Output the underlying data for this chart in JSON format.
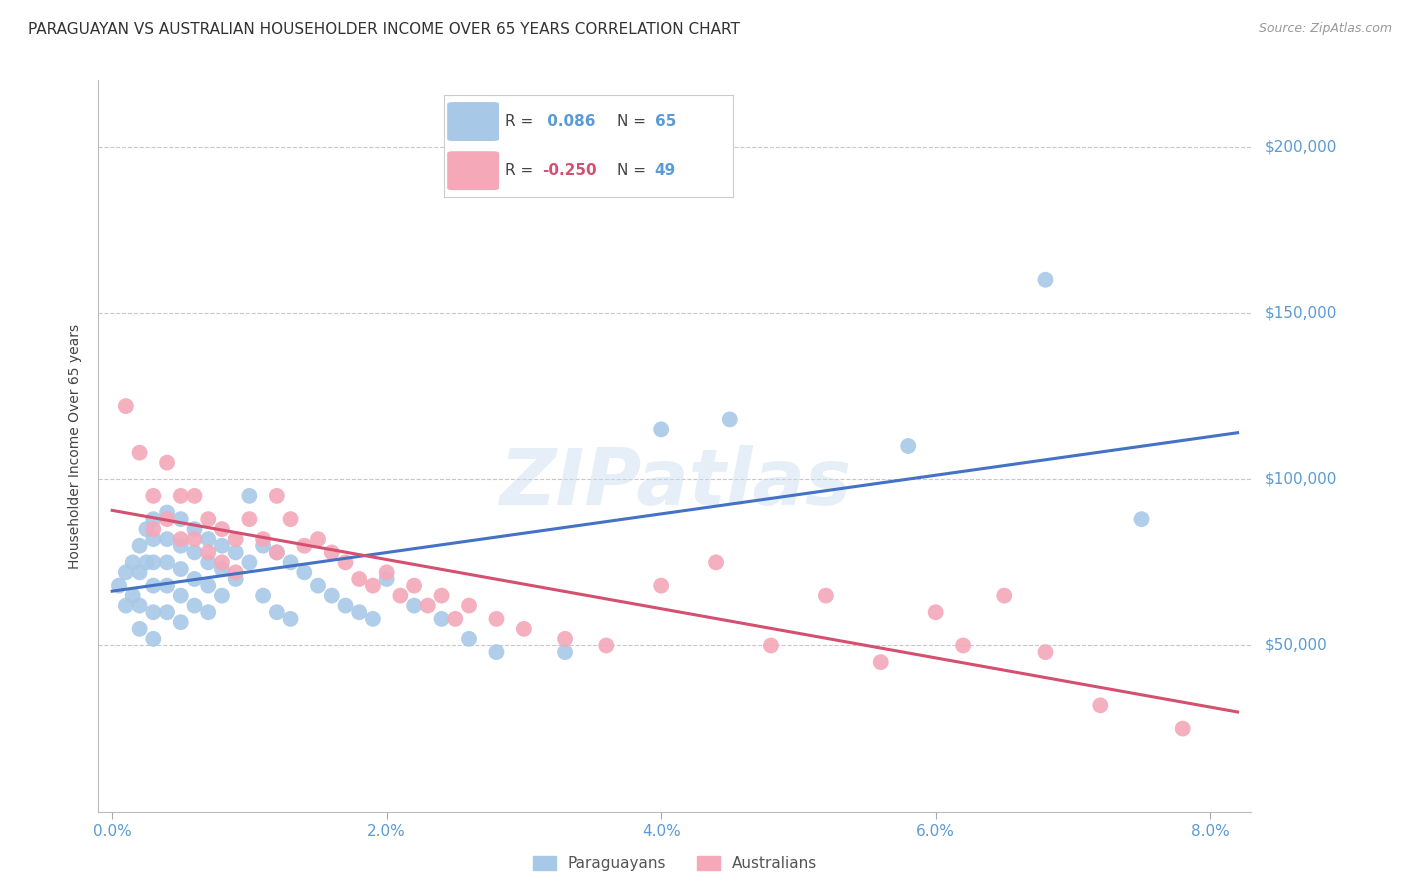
{
  "title": "PARAGUAYAN VS AUSTRALIAN HOUSEHOLDER INCOME OVER 65 YEARS CORRELATION CHART",
  "source": "Source: ZipAtlas.com",
  "ylabel": "Householder Income Over 65 years",
  "xlabel_ticks": [
    "0.0%",
    "2.0%",
    "4.0%",
    "6.0%",
    "8.0%"
  ],
  "xlabel_vals": [
    0.0,
    0.02,
    0.04,
    0.06,
    0.08
  ],
  "ytick_labels": [
    "$50,000",
    "$100,000",
    "$150,000",
    "$200,000"
  ],
  "ytick_vals": [
    50000,
    100000,
    150000,
    200000
  ],
  "ylim": [
    0,
    220000
  ],
  "xlim": [
    -0.001,
    0.083
  ],
  "watermark": "ZIPatlas",
  "paraguayan_color": "#a8c8e8",
  "australian_color": "#f4a8b8",
  "paraguayan_line_color": "#4472c4",
  "australian_line_color": "#d45070",
  "paraguayan_R": 0.086,
  "paraguayan_N": 65,
  "australian_R": -0.25,
  "australian_N": 49,
  "paraguayan_x": [
    0.0005,
    0.001,
    0.001,
    0.0015,
    0.0015,
    0.002,
    0.002,
    0.002,
    0.002,
    0.0025,
    0.0025,
    0.003,
    0.003,
    0.003,
    0.003,
    0.003,
    0.003,
    0.004,
    0.004,
    0.004,
    0.004,
    0.004,
    0.005,
    0.005,
    0.005,
    0.005,
    0.005,
    0.006,
    0.006,
    0.006,
    0.006,
    0.007,
    0.007,
    0.007,
    0.007,
    0.008,
    0.008,
    0.008,
    0.009,
    0.009,
    0.01,
    0.01,
    0.011,
    0.011,
    0.012,
    0.012,
    0.013,
    0.013,
    0.014,
    0.015,
    0.016,
    0.017,
    0.018,
    0.019,
    0.02,
    0.022,
    0.024,
    0.026,
    0.028,
    0.033,
    0.04,
    0.045,
    0.058,
    0.068,
    0.075
  ],
  "paraguayan_y": [
    68000,
    72000,
    62000,
    75000,
    65000,
    80000,
    72000,
    62000,
    55000,
    85000,
    75000,
    88000,
    82000,
    75000,
    68000,
    60000,
    52000,
    90000,
    82000,
    75000,
    68000,
    60000,
    88000,
    80000,
    73000,
    65000,
    57000,
    85000,
    78000,
    70000,
    62000,
    82000,
    75000,
    68000,
    60000,
    80000,
    73000,
    65000,
    78000,
    70000,
    95000,
    75000,
    80000,
    65000,
    78000,
    60000,
    75000,
    58000,
    72000,
    68000,
    65000,
    62000,
    60000,
    58000,
    70000,
    62000,
    58000,
    52000,
    48000,
    48000,
    115000,
    118000,
    110000,
    160000,
    88000
  ],
  "australian_x": [
    0.001,
    0.002,
    0.003,
    0.003,
    0.004,
    0.004,
    0.005,
    0.005,
    0.006,
    0.006,
    0.007,
    0.007,
    0.008,
    0.008,
    0.009,
    0.009,
    0.01,
    0.011,
    0.012,
    0.012,
    0.013,
    0.014,
    0.015,
    0.016,
    0.017,
    0.018,
    0.019,
    0.02,
    0.021,
    0.022,
    0.023,
    0.024,
    0.025,
    0.026,
    0.028,
    0.03,
    0.033,
    0.036,
    0.04,
    0.044,
    0.048,
    0.052,
    0.056,
    0.06,
    0.062,
    0.065,
    0.068,
    0.072,
    0.078
  ],
  "australian_y": [
    122000,
    108000,
    95000,
    85000,
    105000,
    88000,
    95000,
    82000,
    95000,
    82000,
    88000,
    78000,
    85000,
    75000,
    82000,
    72000,
    88000,
    82000,
    95000,
    78000,
    88000,
    80000,
    82000,
    78000,
    75000,
    70000,
    68000,
    72000,
    65000,
    68000,
    62000,
    65000,
    58000,
    62000,
    58000,
    55000,
    52000,
    50000,
    68000,
    75000,
    50000,
    65000,
    45000,
    60000,
    50000,
    65000,
    48000,
    32000,
    25000
  ],
  "title_fontsize": 11,
  "source_fontsize": 9,
  "tick_label_color": "#5b9bd5",
  "background_color": "#ffffff",
  "grid_color": "#c8c8c8",
  "legend_fontsize": 11
}
